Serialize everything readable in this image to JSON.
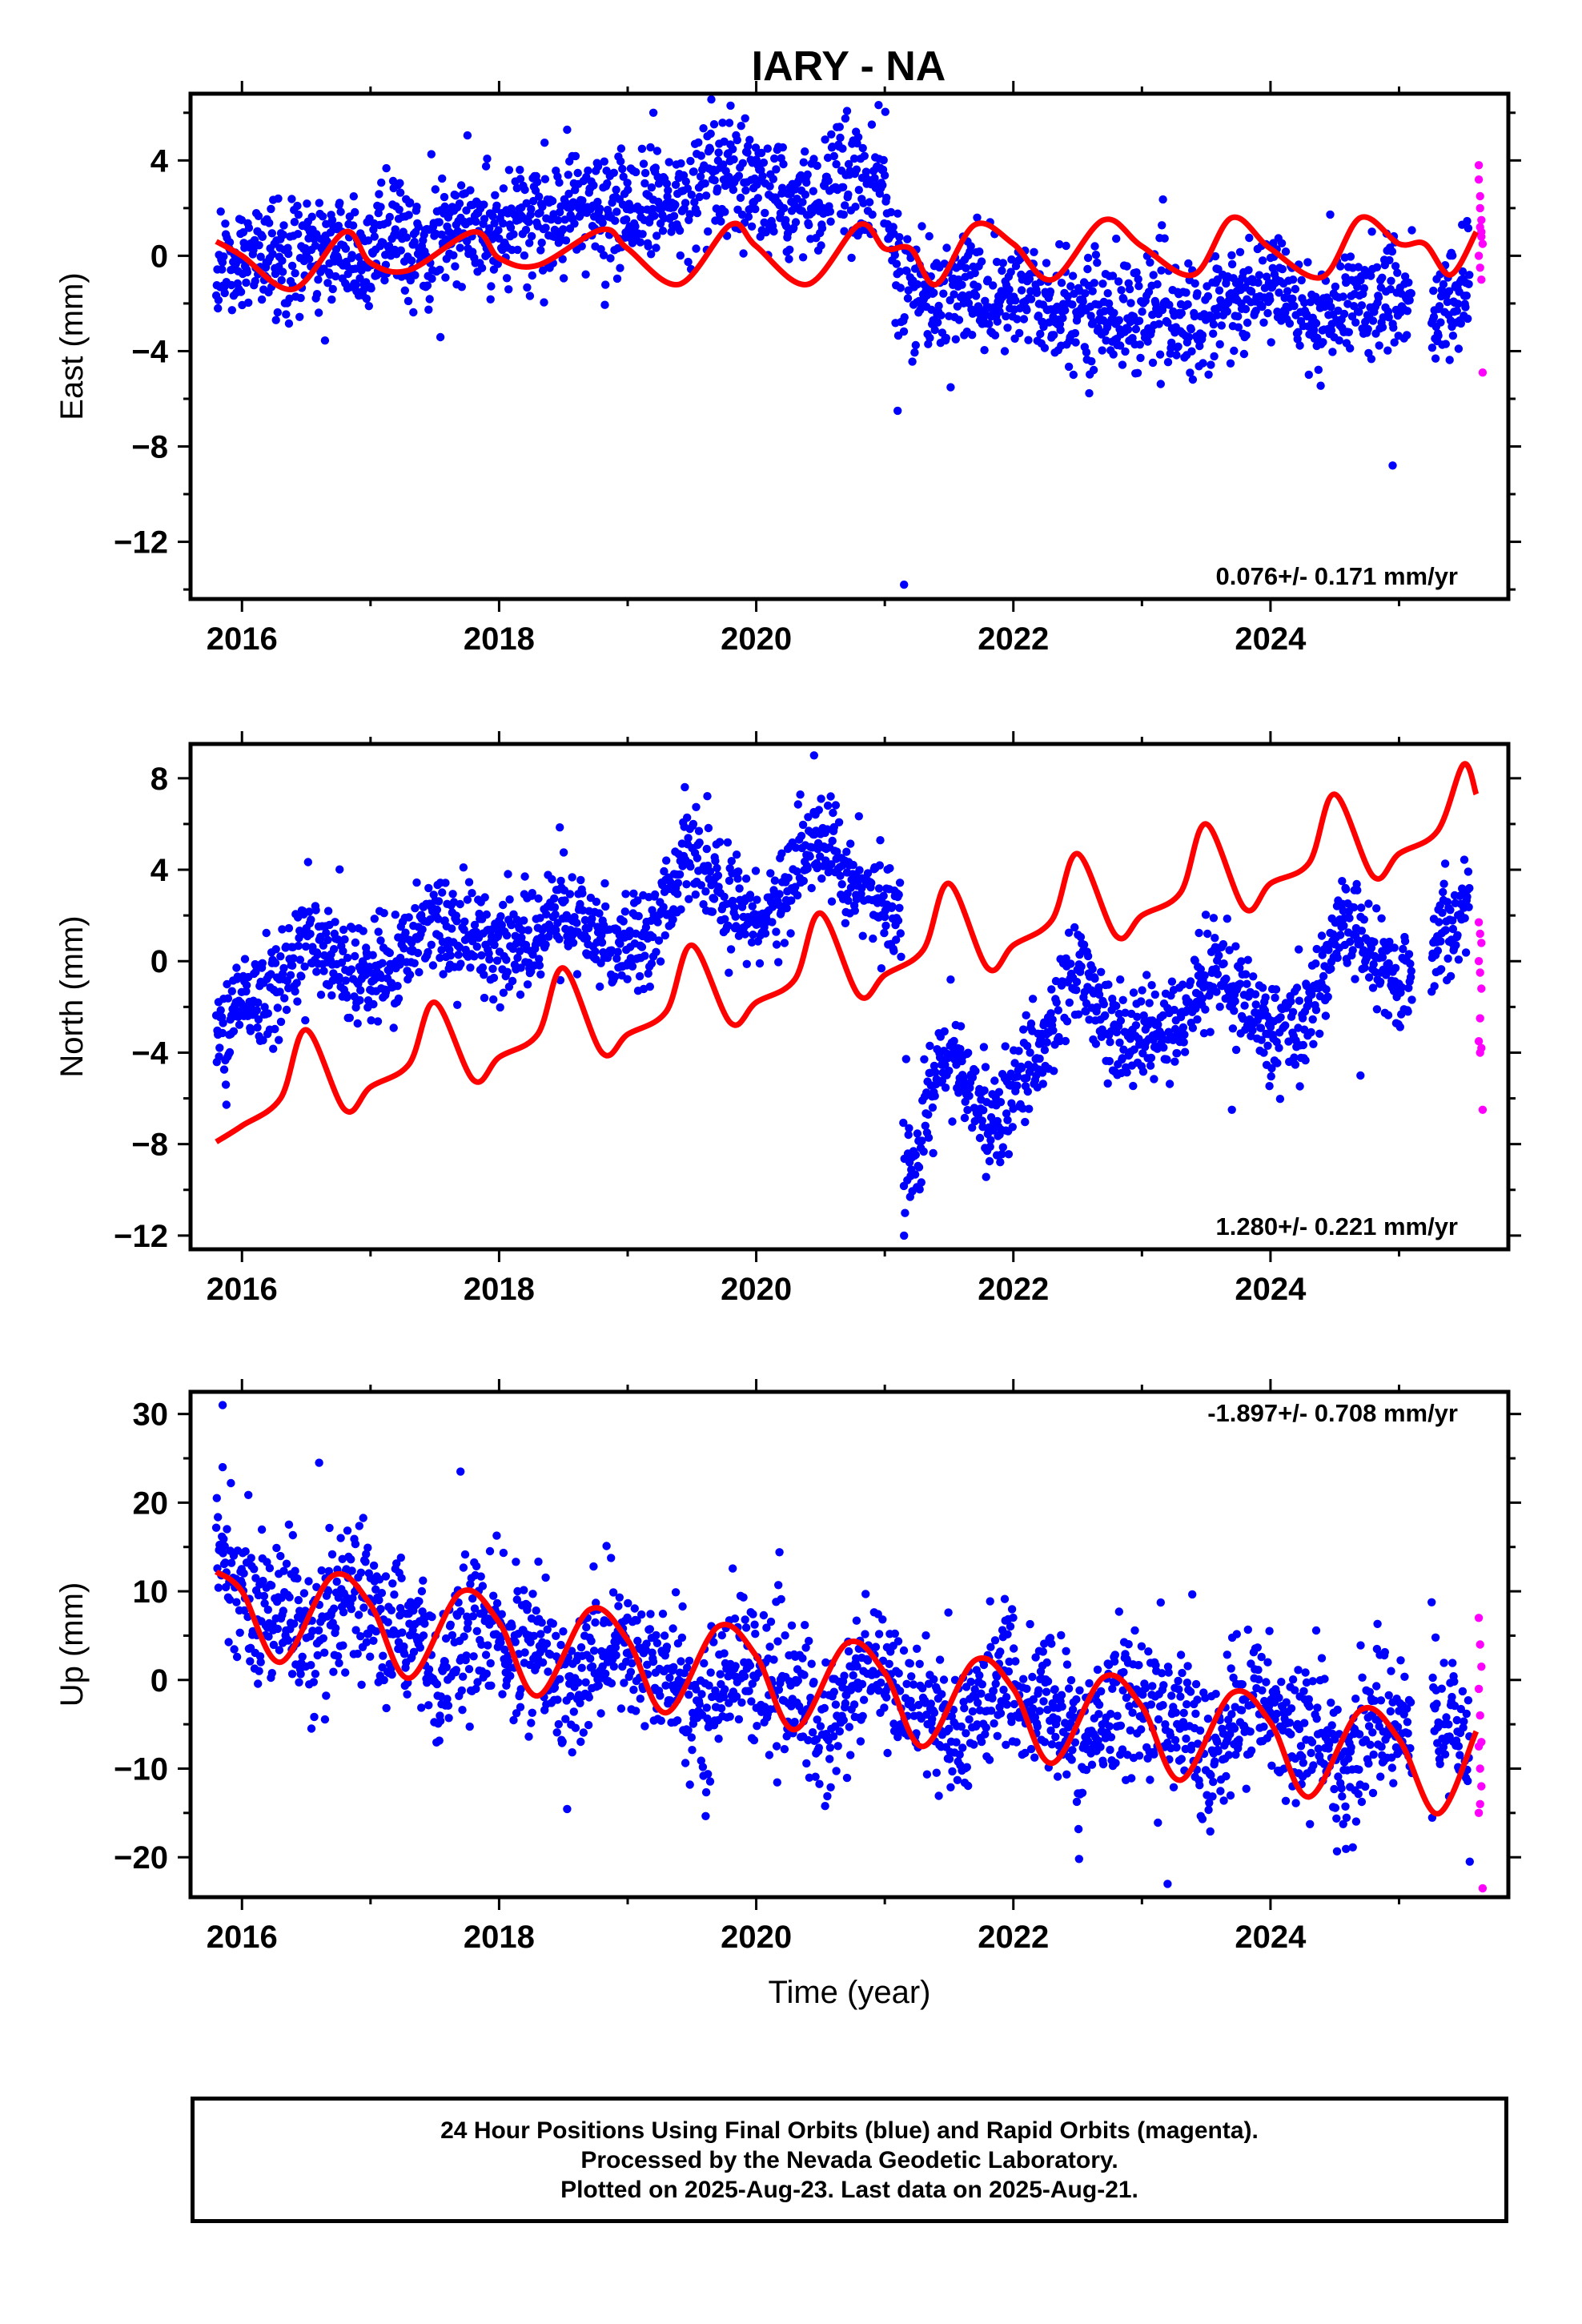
{
  "title": "IARY - NA",
  "colors": {
    "final": "#0000ff",
    "rapid": "#ff00ff",
    "model": "#ff0000"
  },
  "x_axis": {
    "label": "Time (year)",
    "ticks": [
      2016,
      2018,
      2020,
      2022,
      2024
    ]
  },
  "footer": {
    "line1": "24 Hour Positions Using Final Orbits (blue) and Rapid Orbits (magenta).",
    "line2": "Processed by the Nevada Geodetic Laboratory.",
    "line3": "Plotted on 2025-Aug-23. Last data on 2025-Aug-21."
  },
  "chart_data": [
    {
      "type": "scatter",
      "ylabel": "East (mm)",
      "xlim": [
        2015.6,
        2025.85
      ],
      "ylim": [
        -14.4,
        6.8
      ],
      "yticks": [
        -12,
        -8,
        -4,
        0,
        4
      ],
      "ytick_labels": [
        "−12",
        "−8",
        "−4",
        "0",
        "4"
      ],
      "rate": "0.076+/- 0.171 mm/yr",
      "rate_position": "bottom-right",
      "final_trend": [
        [
          2015.8,
          -0.2
        ],
        [
          2016.5,
          0.0
        ],
        [
          2017.0,
          0.3
        ],
        [
          2017.5,
          0.8
        ],
        [
          2018.0,
          1.3
        ],
        [
          2018.5,
          1.6
        ],
        [
          2018.9,
          2.0
        ],
        [
          2019.3,
          2.1
        ],
        [
          2019.8,
          3.2
        ],
        [
          2020.2,
          2.0
        ],
        [
          2020.6,
          3.0
        ],
        [
          2021.0,
          3.2
        ],
        [
          2021.1,
          -1.5
        ],
        [
          2021.6,
          -1.5
        ],
        [
          2022.0,
          -1.8
        ],
        [
          2022.5,
          -2.4
        ],
        [
          2023.0,
          -2.4
        ],
        [
          2023.5,
          -2.6
        ],
        [
          2024.0,
          -1.3
        ],
        [
          2024.4,
          -2.6
        ],
        [
          2024.8,
          -1.7
        ],
        [
          2025.0,
          -1.7
        ],
        [
          2025.3,
          -2.5
        ],
        [
          2025.55,
          -1.0
        ]
      ],
      "final_noise": 1.2,
      "seasonal_amplitude": 0.9,
      "seasonal_phase": 0.0,
      "final_outliers": [
        [
          2021.1,
          -6.5
        ],
        [
          2021.15,
          -13.8
        ],
        [
          2024.95,
          -8.8
        ],
        [
          2019.2,
          6.0
        ],
        [
          2019.8,
          6.3
        ]
      ],
      "rapid": [
        [
          2025.62,
          3.8
        ],
        [
          2025.62,
          3.2
        ],
        [
          2025.63,
          2.5
        ],
        [
          2025.63,
          2.0
        ],
        [
          2025.64,
          1.5
        ],
        [
          2025.64,
          1.0
        ],
        [
          2025.65,
          0.5
        ],
        [
          2025.62,
          0.0
        ],
        [
          2025.63,
          -0.5
        ],
        [
          2025.64,
          -1.0
        ],
        [
          2025.63,
          1.2
        ],
        [
          2025.64,
          0.8
        ],
        [
          2025.65,
          -4.9
        ]
      ],
      "model": [
        [
          2015.8,
          0.6
        ],
        [
          2016.0,
          0.0
        ],
        [
          2016.4,
          -1.4
        ],
        [
          2016.8,
          1.0
        ],
        [
          2017.0,
          -0.3
        ],
        [
          2017.3,
          -0.6
        ],
        [
          2017.8,
          1.0
        ],
        [
          2018.0,
          -0.1
        ],
        [
          2018.3,
          -0.4
        ],
        [
          2018.8,
          1.1
        ],
        [
          2019.0,
          0.3
        ],
        [
          2019.4,
          -1.2
        ],
        [
          2019.8,
          1.3
        ],
        [
          2020.0,
          0.4
        ],
        [
          2020.4,
          -1.2
        ],
        [
          2020.8,
          1.3
        ],
        [
          2021.0,
          0.3
        ],
        [
          2021.2,
          0.3
        ],
        [
          2021.4,
          -1.2
        ],
        [
          2021.7,
          1.3
        ],
        [
          2022.0,
          0.5
        ],
        [
          2022.3,
          -1.0
        ],
        [
          2022.7,
          1.5
        ],
        [
          2023.0,
          0.4
        ],
        [
          2023.4,
          -0.8
        ],
        [
          2023.7,
          1.6
        ],
        [
          2024.0,
          0.3
        ],
        [
          2024.4,
          -0.9
        ],
        [
          2024.7,
          1.6
        ],
        [
          2025.0,
          0.5
        ],
        [
          2025.2,
          0.5
        ],
        [
          2025.4,
          -0.8
        ],
        [
          2025.6,
          1.0
        ]
      ]
    },
    {
      "type": "scatter",
      "ylabel": "North (mm)",
      "xlim": [
        2015.6,
        2025.85
      ],
      "ylim": [
        -12.6,
        9.5
      ],
      "yticks": [
        -12,
        -8,
        -4,
        0,
        4,
        8
      ],
      "ytick_labels": [
        "−12",
        "−8",
        "−4",
        "0",
        "4",
        "8"
      ],
      "rate": "1.280+/- 0.221 mm/yr",
      "rate_position": "bottom-right",
      "final_trend": [
        [
          2015.8,
          -3.5
        ],
        [
          2016.2,
          -1.0
        ],
        [
          2016.6,
          1.0
        ],
        [
          2017.0,
          -1.2
        ],
        [
          2017.5,
          2.0
        ],
        [
          2018.0,
          0.5
        ],
        [
          2018.5,
          2.0
        ],
        [
          2019.0,
          0.5
        ],
        [
          2019.5,
          4.5
        ],
        [
          2020.0,
          1.5
        ],
        [
          2020.5,
          5.5
        ],
        [
          2021.0,
          2.0
        ],
        [
          2021.12,
          1.5
        ],
        [
          2021.15,
          -9.0
        ],
        [
          2021.5,
          -4.0
        ],
        [
          2021.9,
          -7.5
        ],
        [
          2022.2,
          -3.5
        ],
        [
          2022.5,
          -0.5
        ],
        [
          2022.9,
          -4.0
        ],
        [
          2023.2,
          -3.0
        ],
        [
          2023.6,
          0.0
        ],
        [
          2024.0,
          -3.5
        ],
        [
          2024.3,
          -2.0
        ],
        [
          2024.6,
          2.0
        ],
        [
          2025.0,
          -1.5
        ],
        [
          2025.3,
          1.5
        ],
        [
          2025.55,
          2.0
        ]
      ],
      "final_noise": 1.1,
      "seasonal_amplitude": 1.0,
      "seasonal_phase": 0.3,
      "final_outliers": [
        [
          2021.15,
          -12.0
        ],
        [
          2020.45,
          9.0
        ],
        [
          2023.7,
          -6.5
        ],
        [
          2024.7,
          -5.0
        ]
      ],
      "rapid": [
        [
          2025.62,
          1.7
        ],
        [
          2025.63,
          1.2
        ],
        [
          2025.64,
          0.8
        ],
        [
          2025.62,
          0.0
        ],
        [
          2025.63,
          -0.5
        ],
        [
          2025.64,
          -1.2
        ],
        [
          2025.63,
          -2.5
        ],
        [
          2025.62,
          -3.5
        ],
        [
          2025.64,
          -3.8
        ],
        [
          2025.63,
          -4.0
        ],
        [
          2025.65,
          -6.5
        ]
      ],
      "model": [
        [
          2015.8,
          -7.9
        ],
        [
          2016.0,
          -7.2
        ],
        [
          2016.3,
          -6.0
        ],
        [
          2016.5,
          -3.0
        ],
        [
          2016.8,
          -6.5
        ],
        [
          2017.0,
          -5.5
        ],
        [
          2017.3,
          -4.5
        ],
        [
          2017.5,
          -1.8
        ],
        [
          2017.8,
          -5.2
        ],
        [
          2018.0,
          -4.2
        ],
        [
          2018.3,
          -3.2
        ],
        [
          2018.5,
          -0.3
        ],
        [
          2018.8,
          -4.0
        ],
        [
          2019.0,
          -3.2
        ],
        [
          2019.3,
          -2.2
        ],
        [
          2019.5,
          0.7
        ],
        [
          2019.8,
          -2.7
        ],
        [
          2020.0,
          -1.8
        ],
        [
          2020.3,
          -0.8
        ],
        [
          2020.5,
          2.1
        ],
        [
          2020.8,
          -1.5
        ],
        [
          2021.0,
          -0.6
        ],
        [
          2021.3,
          0.5
        ],
        [
          2021.5,
          3.4
        ],
        [
          2021.8,
          -0.3
        ],
        [
          2022.0,
          0.7
        ],
        [
          2022.3,
          1.8
        ],
        [
          2022.5,
          4.7
        ],
        [
          2022.8,
          1.1
        ],
        [
          2023.0,
          2.0
        ],
        [
          2023.3,
          3.0
        ],
        [
          2023.5,
          6.0
        ],
        [
          2023.8,
          2.3
        ],
        [
          2024.0,
          3.4
        ],
        [
          2024.3,
          4.3
        ],
        [
          2024.5,
          7.3
        ],
        [
          2024.8,
          3.7
        ],
        [
          2025.0,
          4.7
        ],
        [
          2025.3,
          5.7
        ],
        [
          2025.5,
          8.6
        ],
        [
          2025.6,
          7.3
        ]
      ]
    },
    {
      "type": "scatter",
      "ylabel": "Up (mm)",
      "xlim": [
        2015.6,
        2025.85
      ],
      "ylim": [
        -24.5,
        32.5
      ],
      "yticks": [
        -20,
        -10,
        0,
        10,
        20,
        30
      ],
      "ytick_labels": [
        "−20",
        "−10",
        "0",
        "10",
        "20",
        "30"
      ],
      "rate": "-1.897+/- 0.708 mm/yr",
      "rate_position": "top-right",
      "final_trend": [
        [
          2015.8,
          13.0
        ],
        [
          2016.5,
          5.0
        ],
        [
          2017.0,
          8.0
        ],
        [
          2017.5,
          2.0
        ],
        [
          2018.0,
          6.0
        ],
        [
          2018.5,
          0.0
        ],
        [
          2019.0,
          4.0
        ],
        [
          2019.5,
          -3.0
        ],
        [
          2020.0,
          2.0
        ],
        [
          2020.5,
          -5.0
        ],
        [
          2021.0,
          1.0
        ],
        [
          2021.5,
          -6.0
        ],
        [
          2022.0,
          0.0
        ],
        [
          2022.5,
          -7.0
        ],
        [
          2023.0,
          -1.0
        ],
        [
          2023.5,
          -8.0
        ],
        [
          2024.0,
          -2.0
        ],
        [
          2024.5,
          -9.0
        ],
        [
          2025.0,
          -4.0
        ],
        [
          2025.55,
          -7.0
        ]
      ],
      "final_noise": 4.0,
      "seasonal_amplitude": 5.0,
      "seasonal_phase": 0.6,
      "final_outliers": [
        [
          2015.85,
          31.0
        ],
        [
          2015.85,
          24.0
        ],
        [
          2016.6,
          24.5
        ],
        [
          2017.7,
          23.5
        ],
        [
          2023.2,
          -23.0
        ],
        [
          2025.55,
          -20.5
        ]
      ],
      "rapid": [
        [
          2025.62,
          7.0
        ],
        [
          2025.63,
          4.0
        ],
        [
          2025.64,
          1.5
        ],
        [
          2025.62,
          -1.0
        ],
        [
          2025.63,
          -4.0
        ],
        [
          2025.64,
          -7.0
        ],
        [
          2025.62,
          -7.5
        ],
        [
          2025.63,
          -10.0
        ],
        [
          2025.64,
          -12.0
        ],
        [
          2025.63,
          -14.0
        ],
        [
          2025.62,
          -15.0
        ],
        [
          2025.65,
          -23.5
        ]
      ],
      "model": [
        [
          2015.8,
          12.2
        ],
        [
          2016.0,
          10.0
        ],
        [
          2016.3,
          2.0
        ],
        [
          2016.7,
          11.7
        ],
        [
          2017.0,
          8.5
        ],
        [
          2017.3,
          0.2
        ],
        [
          2017.7,
          9.9
        ],
        [
          2018.0,
          6.5
        ],
        [
          2018.3,
          -1.8
        ],
        [
          2018.7,
          7.9
        ],
        [
          2019.0,
          4.5
        ],
        [
          2019.3,
          -3.7
        ],
        [
          2019.7,
          6.0
        ],
        [
          2020.0,
          2.7
        ],
        [
          2020.3,
          -5.6
        ],
        [
          2020.7,
          4.1
        ],
        [
          2021.0,
          0.8
        ],
        [
          2021.3,
          -7.5
        ],
        [
          2021.7,
          2.2
        ],
        [
          2022.0,
          -1.0
        ],
        [
          2022.3,
          -9.4
        ],
        [
          2022.7,
          0.3
        ],
        [
          2023.0,
          -3.0
        ],
        [
          2023.3,
          -11.3
        ],
        [
          2023.7,
          -1.5
        ],
        [
          2024.0,
          -4.8
        ],
        [
          2024.3,
          -13.2
        ],
        [
          2024.7,
          -3.4
        ],
        [
          2025.0,
          -6.7
        ],
        [
          2025.3,
          -15.1
        ],
        [
          2025.6,
          -5.8
        ]
      ]
    }
  ]
}
